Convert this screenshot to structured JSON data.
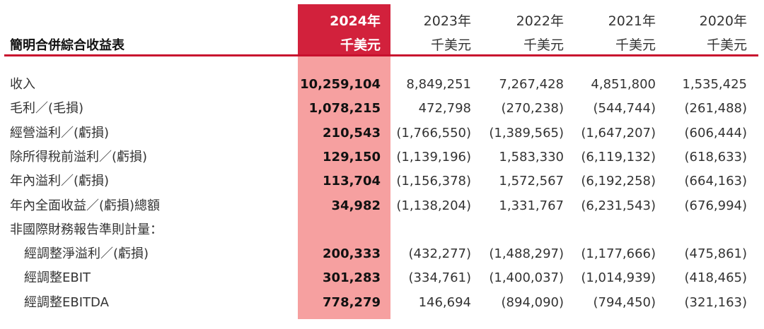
{
  "table": {
    "title": "簡明合併綜合收益表",
    "columns": [
      {
        "year": "2024年",
        "unit": "千美元"
      },
      {
        "year": "2023年",
        "unit": "千美元"
      },
      {
        "year": "2022年",
        "unit": "千美元"
      },
      {
        "year": "2021年",
        "unit": "千美元"
      },
      {
        "year": "2020年",
        "unit": "千美元"
      }
    ],
    "rows": [
      {
        "label": "收入",
        "values": [
          "10,259,104",
          "8,849,251",
          "7,267,428",
          "4,851,800",
          "1,535,425"
        ]
      },
      {
        "label": "毛利／(毛損)",
        "values": [
          "1,078,215",
          "472,798",
          "(270,238)",
          "(544,744)",
          "(261,488)"
        ]
      },
      {
        "label": "經營溢利／(虧損)",
        "values": [
          "210,543",
          "(1,766,550)",
          "(1,389,565)",
          "(1,647,207)",
          "(606,444)"
        ]
      },
      {
        "label": "除所得稅前溢利／(虧損)",
        "values": [
          "129,150",
          "(1,139,196)",
          "1,583,330",
          "(6,119,132)",
          "(618,633)"
        ]
      },
      {
        "label": "年內溢利／(虧損)",
        "values": [
          "113,704",
          "(1,156,378)",
          "1,572,567",
          "(6,192,258)",
          "(664,163)"
        ]
      },
      {
        "label": "年內全面收益／(虧損)總額",
        "values": [
          "34,982",
          "(1,138,204)",
          "1,331,767",
          "(6,231,543)",
          "(676,994)"
        ]
      },
      {
        "label": "非國際財務報告準則計量：",
        "values": [
          "",
          "",
          "",
          "",
          ""
        ]
      },
      {
        "label": "經調整淨溢利／(虧損)",
        "values": [
          "200,333",
          "(432,277)",
          "(1,488,297)",
          "(1,177,666)",
          "(475,861)"
        ]
      },
      {
        "label": "經調整EBIT",
        "values": [
          "301,283",
          "(334,761)",
          "(1,400,037)",
          "(1,014,939)",
          "(418,465)"
        ]
      },
      {
        "label": "經調整EBITDA",
        "values": [
          "778,279",
          "146,694",
          "(894,090)",
          "(794,450)",
          "(321,163)"
        ]
      }
    ]
  },
  "colors": {
    "highlight_header": "#d2213c",
    "highlight_body": "#f6a0a0",
    "rule": "#c8102e"
  }
}
